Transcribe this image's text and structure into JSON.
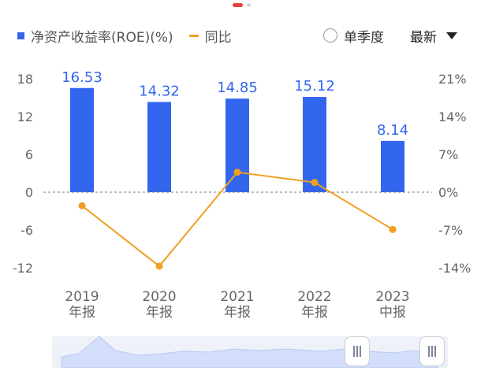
{
  "legend": {
    "roe_label": "净资产收益率(ROE)(%)",
    "yoy_label": "同比",
    "roe_color": "#3366ee",
    "yoy_color": "#f0a020"
  },
  "controls": {
    "quarterly_label": "单季度",
    "latest_label": "最新"
  },
  "chart_data": {
    "type": "bar",
    "categories": [
      [
        "2019",
        "年报"
      ],
      [
        "2020",
        "年报"
      ],
      [
        "2021",
        "年报"
      ],
      [
        "2022",
        "年报"
      ],
      [
        "2023",
        "中报"
      ]
    ],
    "series": [
      {
        "name": "净资产收益率(ROE)(%)",
        "type": "bar",
        "axis": "left",
        "values": [
          16.53,
          14.32,
          14.85,
          15.12,
          8.14
        ],
        "labels": [
          "16.53",
          "14.32",
          "14.85",
          "15.12",
          "8.14"
        ]
      },
      {
        "name": "同比",
        "type": "line",
        "axis": "right",
        "values": [
          -2.5,
          -13.7,
          3.7,
          1.8,
          -6.9
        ]
      }
    ],
    "left_axis": {
      "ticks": [
        18,
        12,
        6,
        0,
        -6,
        -12
      ],
      "tick_labels": [
        "18",
        "12",
        "6",
        "0",
        "-6",
        "-12"
      ],
      "range": [
        -12,
        18
      ]
    },
    "right_axis": {
      "ticks": [
        21,
        14,
        7,
        0,
        -7,
        -14
      ],
      "tick_labels": [
        "21%",
        "14%",
        "7%",
        "0%",
        "-7%",
        "-14%"
      ],
      "range": [
        -14,
        21
      ]
    },
    "zero_line": "dashed",
    "grid": false,
    "legend_position": "top-left"
  },
  "navigator": {
    "range_start": 0.77,
    "range_end": 0.96
  }
}
